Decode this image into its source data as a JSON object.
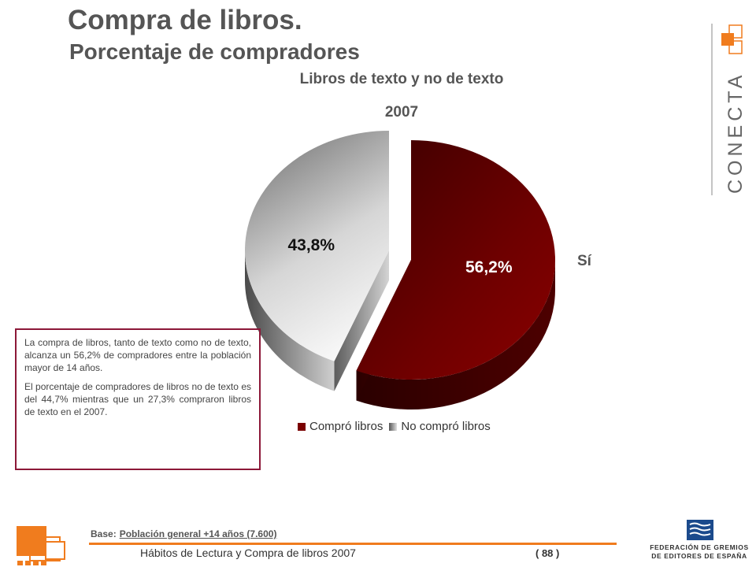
{
  "header": {
    "title": "Compra de libros.",
    "subtitle": "Porcentaje de compradores"
  },
  "chart_data": {
    "type": "pie",
    "title": "Libros de texto y no de texto",
    "subtitle": "2007",
    "categories": [
      "Compró libros",
      "No compró libros"
    ],
    "values": [
      56.2,
      43.8
    ],
    "data_labels": [
      "56,2%",
      "43,8%"
    ],
    "colors": [
      "#7a0000",
      "#9a9a9a"
    ],
    "annotation": "Sí",
    "legend_position": "bottom",
    "style": "3d-exploded"
  },
  "textbox": {
    "paragraph1": "La compra de libros, tanto de texto como no de texto, alcanza un 56,2% de compradores entre la población mayor de 14 años.",
    "paragraph2": "El porcentaje de compradores de libros no de texto es del 44,7% mientras que un 27,3% compraron libros de texto en el 2007."
  },
  "footer": {
    "base_label": "Base:",
    "base_value": "Población general +14 años (7.600)",
    "report_title": "Hábitos de Lectura y Compra de libros 2007",
    "page": "( 88 )"
  },
  "logos": {
    "conecta": "CONECTA",
    "federacion_line1": "FEDERACIÓN DE GREMIOS",
    "federacion_line2": "DE EDITORES DE ESPAÑA"
  }
}
